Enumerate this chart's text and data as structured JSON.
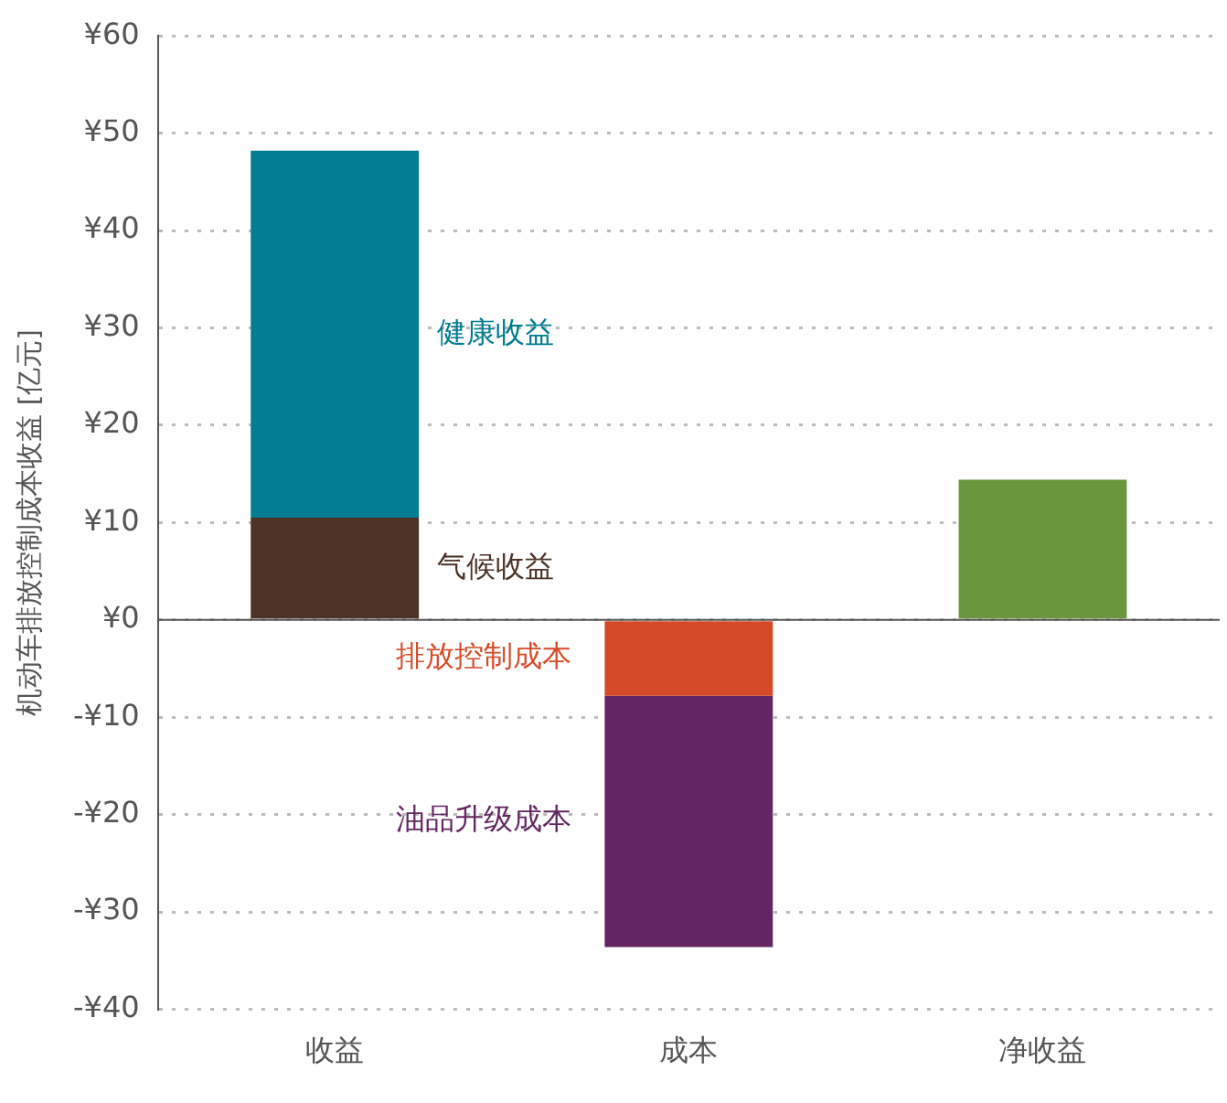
{
  "chart_data": {
    "type": "bar",
    "stacked": true,
    "ylabel": "机动车排放控制成本收益 [亿元]",
    "categories": [
      "收益",
      "成本",
      "净收益"
    ],
    "series": [
      {
        "name": "气候收益",
        "color": "#4d3326",
        "values": [
          10.5,
          null,
          null
        ]
      },
      {
        "name": "健康收益",
        "color": "#007d91",
        "values": [
          37.7,
          null,
          null
        ]
      },
      {
        "name": "排放控制成本",
        "color": "#d64b27",
        "values": [
          null,
          -7.8,
          null
        ]
      },
      {
        "name": "油品升级成本",
        "color": "#642563",
        "values": [
          null,
          -25.8,
          null
        ]
      },
      {
        "color": "#6a963e",
        "values": [
          null,
          null,
          14.4
        ]
      }
    ],
    "ylim": [
      -40,
      60
    ],
    "yticks": [
      {
        "value": -40,
        "label": "-¥40"
      },
      {
        "value": -30,
        "label": "-¥30"
      },
      {
        "value": -20,
        "label": "-¥20"
      },
      {
        "value": -10,
        "label": "-¥10"
      },
      {
        "value": 0,
        "label": "¥0"
      },
      {
        "value": 10,
        "label": "¥10"
      },
      {
        "value": 20,
        "label": "¥20"
      },
      {
        "value": 30,
        "label": "¥30"
      },
      {
        "value": 40,
        "label": "¥40"
      },
      {
        "value": 50,
        "label": "¥50"
      },
      {
        "value": 60,
        "label": "¥60"
      }
    ],
    "grid": "y",
    "legend": false
  }
}
